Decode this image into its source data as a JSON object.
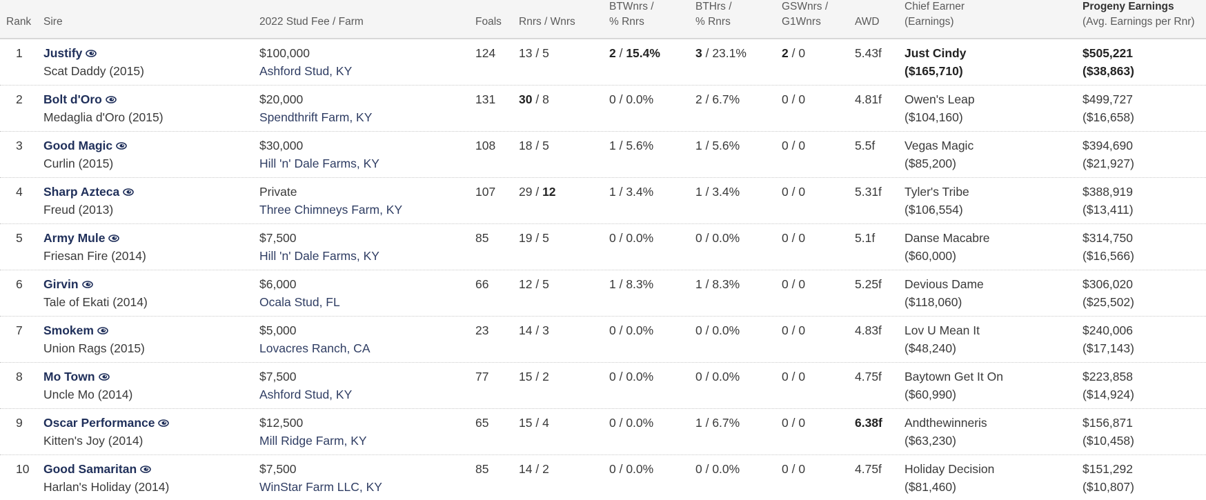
{
  "header": {
    "rank": "Rank",
    "sire": "Sire",
    "fee": "2022 Stud Fee / Farm",
    "foals": "Foals",
    "rnrs": "Rnrs / Wnrs",
    "btw1": "BTWnrs /",
    "btw2": "% Rnrs",
    "bth1": "BTHrs /",
    "bth2": "% Rnrs",
    "gsw1": "GSWnrs /",
    "gsw2": "G1Wnrs",
    "awd": "AWD",
    "chief1": "Chief Earner",
    "chief2": "(Earnings)",
    "prog1": "Progeny Earnings",
    "prog2": "(Avg. Earnings per Rnr)"
  },
  "rows": [
    {
      "rank": "1",
      "name": "Justify",
      "sire": "Scat Daddy (2015)",
      "fee": "$100,000",
      "farm": "Ashford Stud, KY",
      "foals": "124",
      "rnrs": "13",
      "wnrs": "5",
      "btw": "2",
      "btwp": "15.4%",
      "bth": "3",
      "bthp": "23.1%",
      "gsw": "2",
      "g1w": "0",
      "awd": "5.43f",
      "chief": "Just Cindy",
      "chief_earn": "($165,710)",
      "prog": "$505,221",
      "prog_avg": "($38,863)"
    },
    {
      "rank": "2",
      "name": "Bolt d'Oro",
      "sire": "Medaglia d'Oro (2015)",
      "fee": "$20,000",
      "farm": "Spendthrift Farm, KY",
      "foals": "131",
      "rnrs": "30",
      "wnrs": "8",
      "btw": "0",
      "btwp": "0.0%",
      "bth": "2",
      "bthp": "6.7%",
      "gsw": "0",
      "g1w": "0",
      "awd": "4.81f",
      "chief": "Owen's Leap",
      "chief_earn": "($104,160)",
      "prog": "$499,727",
      "prog_avg": "($16,658)"
    },
    {
      "rank": "3",
      "name": "Good Magic",
      "sire": "Curlin (2015)",
      "fee": "$30,000",
      "farm": "Hill 'n' Dale Farms, KY",
      "foals": "108",
      "rnrs": "18",
      "wnrs": "5",
      "btw": "1",
      "btwp": "5.6%",
      "bth": "1",
      "bthp": "5.6%",
      "gsw": "0",
      "g1w": "0",
      "awd": "5.5f",
      "chief": "Vegas Magic",
      "chief_earn": "($85,200)",
      "prog": "$394,690",
      "prog_avg": "($21,927)"
    },
    {
      "rank": "4",
      "name": "Sharp Azteca",
      "sire": "Freud (2013)",
      "fee": "Private",
      "farm": "Three Chimneys Farm, KY",
      "foals": "107",
      "rnrs": "29",
      "wnrs": "12",
      "btw": "1",
      "btwp": "3.4%",
      "bth": "1",
      "bthp": "3.4%",
      "gsw": "0",
      "g1w": "0",
      "awd": "5.31f",
      "chief": "Tyler's Tribe",
      "chief_earn": "($106,554)",
      "prog": "$388,919",
      "prog_avg": "($13,411)"
    },
    {
      "rank": "5",
      "name": "Army Mule",
      "sire": "Friesan Fire (2014)",
      "fee": "$7,500",
      "farm": "Hill 'n' Dale Farms, KY",
      "foals": "85",
      "rnrs": "19",
      "wnrs": "5",
      "btw": "0",
      "btwp": "0.0%",
      "bth": "0",
      "bthp": "0.0%",
      "gsw": "0",
      "g1w": "0",
      "awd": "5.1f",
      "chief": "Danse Macabre",
      "chief_earn": "($60,000)",
      "prog": "$314,750",
      "prog_avg": "($16,566)"
    },
    {
      "rank": "6",
      "name": "Girvin",
      "sire": "Tale of Ekati (2014)",
      "fee": "$6,000",
      "farm": "Ocala Stud, FL",
      "foals": "66",
      "rnrs": "12",
      "wnrs": "5",
      "btw": "1",
      "btwp": "8.3%",
      "bth": "1",
      "bthp": "8.3%",
      "gsw": "0",
      "g1w": "0",
      "awd": "5.25f",
      "chief": "Devious Dame",
      "chief_earn": "($118,060)",
      "prog": "$306,020",
      "prog_avg": "($25,502)"
    },
    {
      "rank": "7",
      "name": "Smokem",
      "sire": "Union Rags (2015)",
      "fee": "$5,000",
      "farm": "Lovacres Ranch, CA",
      "foals": "23",
      "rnrs": "14",
      "wnrs": "3",
      "btw": "0",
      "btwp": "0.0%",
      "bth": "0",
      "bthp": "0.0%",
      "gsw": "0",
      "g1w": "0",
      "awd": "4.83f",
      "chief": "Lov U Mean It",
      "chief_earn": "($48,240)",
      "prog": "$240,006",
      "prog_avg": "($17,143)"
    },
    {
      "rank": "8",
      "name": "Mo Town",
      "sire": "Uncle Mo (2014)",
      "fee": "$7,500",
      "farm": "Ashford Stud, KY",
      "foals": "77",
      "rnrs": "15",
      "wnrs": "2",
      "btw": "0",
      "btwp": "0.0%",
      "bth": "0",
      "bthp": "0.0%",
      "gsw": "0",
      "g1w": "0",
      "awd": "4.75f",
      "chief": "Baytown Get It On",
      "chief_earn": "($60,990)",
      "prog": "$223,858",
      "prog_avg": "($14,924)"
    },
    {
      "rank": "9",
      "name": "Oscar Performance",
      "sire": "Kitten's Joy (2014)",
      "fee": "$12,500",
      "farm": "Mill Ridge Farm, KY",
      "foals": "65",
      "rnrs": "15",
      "wnrs": "4",
      "btw": "0",
      "btwp": "0.0%",
      "bth": "1",
      "bthp": "6.7%",
      "gsw": "0",
      "g1w": "0",
      "awd": "6.38f",
      "chief": "Andthewinneris",
      "chief_earn": "($63,230)",
      "prog": "$156,871",
      "prog_avg": "($10,458)"
    },
    {
      "rank": "10",
      "name": "Good Samaritan",
      "sire": "Harlan's Holiday (2014)",
      "fee": "$7,500",
      "farm": "WinStar Farm LLC, KY",
      "foals": "85",
      "rnrs": "14",
      "wnrs": "2",
      "btw": "0",
      "btwp": "0.0%",
      "bth": "0",
      "bthp": "0.0%",
      "gsw": "0",
      "g1w": "0",
      "awd": "4.75f",
      "chief": "Holiday Decision",
      "chief_earn": "($81,460)",
      "prog": "$151,292",
      "prog_avg": "($10,807)"
    }
  ],
  "icons": {
    "sire_icon": "eye-icon"
  },
  "colors": {
    "sire_link": "#1f2f5a",
    "farm_link": "#2f3d63",
    "header_bg": "#f5f5f5"
  }
}
